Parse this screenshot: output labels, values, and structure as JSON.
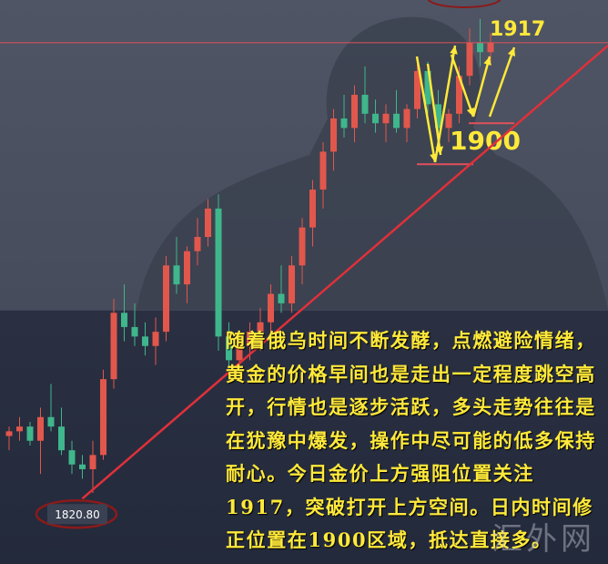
{
  "chart_data": {
    "type": "candlestick",
    "ylim": [
      1807,
      1926
    ],
    "up_color": "#e2574c",
    "down_color": "#3fb68b",
    "candles": [
      [
        1834,
        1836,
        1831,
        1835
      ],
      [
        1835,
        1838,
        1833,
        1836
      ],
      [
        1836,
        1837,
        1832,
        1833
      ],
      [
        1833,
        1840,
        1826,
        1838
      ],
      [
        1838,
        1845,
        1835,
        1836
      ],
      [
        1836,
        1840,
        1830,
        1831
      ],
      [
        1831,
        1833,
        1826,
        1828
      ],
      [
        1828,
        1830,
        1825,
        1827
      ],
      [
        1827,
        1833,
        1822,
        1830
      ],
      [
        1830,
        1848,
        1829,
        1846
      ],
      [
        1846,
        1863,
        1844,
        1860
      ],
      [
        1860,
        1866,
        1854,
        1857
      ],
      [
        1857,
        1862,
        1853,
        1855
      ],
      [
        1855,
        1858,
        1851,
        1853
      ],
      [
        1853,
        1859,
        1849,
        1856
      ],
      [
        1856,
        1872,
        1854,
        1870
      ],
      [
        1870,
        1876,
        1864,
        1866
      ],
      [
        1866,
        1874,
        1862,
        1873
      ],
      [
        1873,
        1880,
        1870,
        1876
      ],
      [
        1876,
        1884,
        1874,
        1882
      ],
      [
        1882,
        1885,
        1852,
        1855
      ],
      [
        1855,
        1858,
        1848,
        1850
      ],
      [
        1850,
        1856,
        1847,
        1853
      ],
      [
        1853,
        1858,
        1850,
        1856
      ],
      [
        1856,
        1861,
        1852,
        1858
      ],
      [
        1858,
        1866,
        1856,
        1864
      ],
      [
        1864,
        1870,
        1860,
        1862
      ],
      [
        1862,
        1872,
        1860,
        1870
      ],
      [
        1870,
        1880,
        1866,
        1878
      ],
      [
        1878,
        1888,
        1874,
        1886
      ],
      [
        1886,
        1896,
        1882,
        1894
      ],
      [
        1894,
        1903,
        1890,
        1901
      ],
      [
        1901,
        1906,
        1897,
        1899
      ],
      [
        1899,
        1908,
        1896,
        1906
      ],
      [
        1906,
        1912,
        1900,
        1902
      ],
      [
        1902,
        1905,
        1898,
        1900
      ],
      [
        1900,
        1904,
        1896,
        1902
      ],
      [
        1902,
        1907,
        1898,
        1899
      ],
      [
        1899,
        1904,
        1896,
        1903
      ],
      [
        1903,
        1914,
        1901,
        1911
      ],
      [
        1911,
        1913,
        1902,
        1904
      ],
      [
        1904,
        1907,
        1897,
        1899
      ],
      [
        1899,
        1903,
        1896,
        1902
      ],
      [
        1902,
        1912,
        1900,
        1910
      ],
      [
        1910,
        1920,
        1908,
        1917
      ],
      [
        1917,
        1922,
        1912,
        1915
      ],
      [
        1915,
        1919,
        1913,
        1917
      ]
    ],
    "resistance": 1917,
    "support": 1900,
    "low": {
      "value": 1820.8,
      "label": "1820.80"
    },
    "commentary": "随着俄乌时间不断发酵，点燃避险情绪，黄金的价格早间也是走出一定程度跳空高开，行情也是逐步活跃，多头走势往往是在犹豫中爆发，操作中尽可能的低多保持耐心。今日金价上方强阻位置关注1917，突破打开上方空间。日内时间修正位置在1900区域，抵达直接多。",
    "watermark": "汇外网"
  }
}
